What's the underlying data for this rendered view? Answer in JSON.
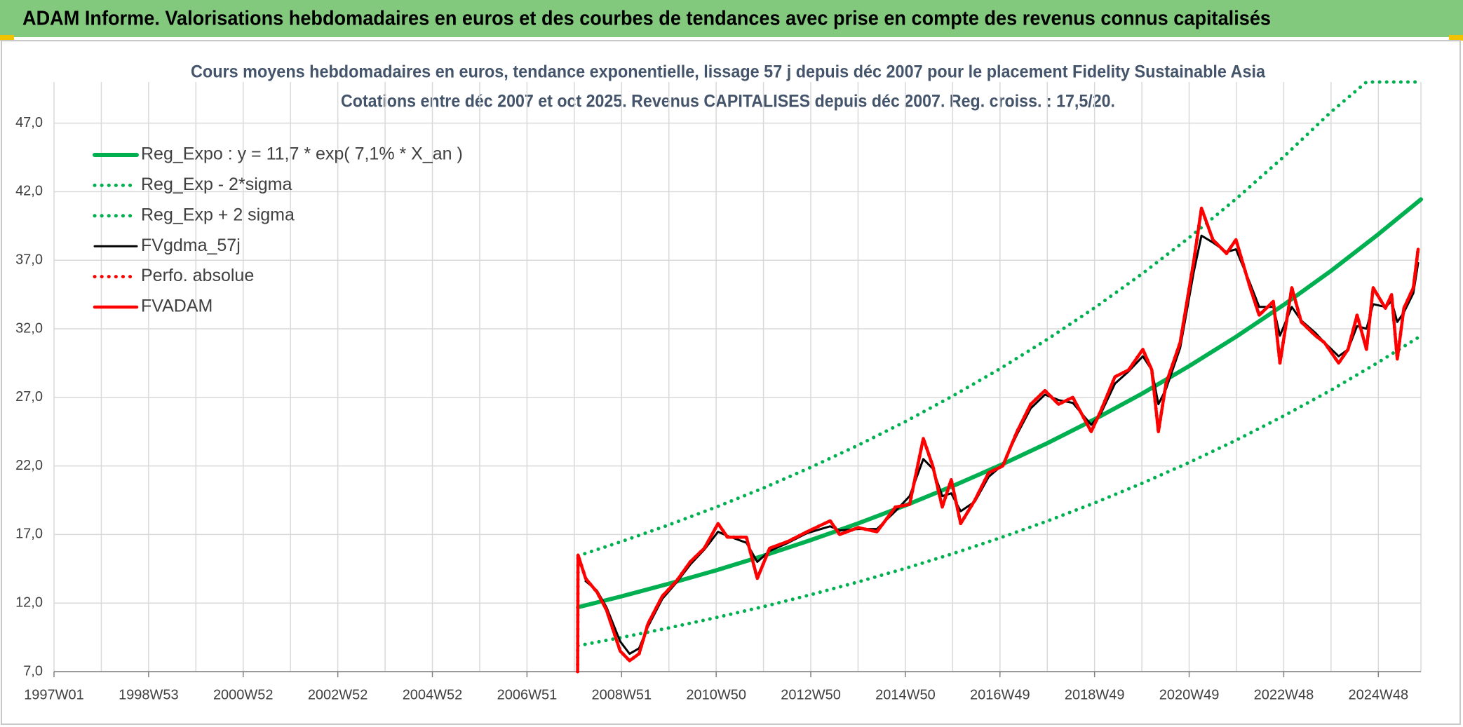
{
  "chart_data": {
    "type": "line",
    "banner": "ADAM Informe. Valorisations hebdomadaires en euros et des courbes de tendances avec prise en compte des revenus connus capitalisés",
    "title": "Cours moyens hebdomadaires en euros, tendance exponentielle, lissage 57 j depuis déc 2007 pour le placement Fidelity Sustainable Asia",
    "subtitle": "Cotations entre déc 2007 et oct 2025. Revenus CAPITALISES depuis déc 2007. Reg. croiss. : 17,5/20.",
    "xlim": [
      1997,
      2025.9
    ],
    "xticks": [
      {
        "value": 1997,
        "label": "1997W01"
      },
      {
        "value": 1999,
        "label": "1998W53"
      },
      {
        "value": 2001,
        "label": "2000W52"
      },
      {
        "value": 2003,
        "label": "2002W52"
      },
      {
        "value": 2005,
        "label": "2004W52"
      },
      {
        "value": 2007,
        "label": "2006W51"
      },
      {
        "value": 2009,
        "label": "2008W51"
      },
      {
        "value": 2011,
        "label": "2010W50"
      },
      {
        "value": 2013,
        "label": "2012W50"
      },
      {
        "value": 2015,
        "label": "2014W50"
      },
      {
        "value": 2017,
        "label": "2016W49"
      },
      {
        "value": 2019,
        "label": "2018W49"
      },
      {
        "value": 2021,
        "label": "2020W49"
      },
      {
        "value": 2023,
        "label": "2022W48"
      },
      {
        "value": 2025,
        "label": "2024W48"
      }
    ],
    "ylim": [
      7,
      50
    ],
    "yticks": [
      {
        "value": 7,
        "label": "7,0"
      },
      {
        "value": 12,
        "label": "12,0"
      },
      {
        "value": 17,
        "label": "17,0"
      },
      {
        "value": 22,
        "label": "22,0"
      },
      {
        "value": 27,
        "label": "27,0"
      },
      {
        "value": 32,
        "label": "32,0"
      },
      {
        "value": 37,
        "label": "37,0"
      },
      {
        "value": 42,
        "label": "42,0"
      },
      {
        "value": 47,
        "label": "47,0"
      }
    ],
    "grid": true,
    "legend": "upper left",
    "series": [
      {
        "name": "Reg_Expo : y = 11,7 * exp( 7,1% *  X_an )",
        "color": "#00b050",
        "style": "solid",
        "x": [
          2008.08,
          2009,
          2010,
          2011,
          2012,
          2013,
          2014,
          2015,
          2016,
          2017,
          2018,
          2019,
          2020,
          2021,
          2022,
          2023,
          2024,
          2025,
          2025.9
        ],
        "values": [
          11.7,
          12.49,
          13.41,
          14.39,
          15.45,
          16.59,
          17.81,
          19.12,
          20.53,
          22.04,
          23.66,
          25.4,
          27.27,
          29.28,
          31.44,
          33.75,
          36.23,
          38.9,
          41.44
        ]
      },
      {
        "name": "Reg_Exp - 2*sigma",
        "color": "#00b050",
        "style": "dotted",
        "x": [
          2008.08,
          2009,
          2010,
          2011,
          2012,
          2013,
          2014,
          2015,
          2016,
          2017,
          2018,
          2019,
          2020,
          2021,
          2022,
          2023,
          2024,
          2025,
          2025.9
        ],
        "values": [
          8.89,
          9.49,
          10.19,
          10.94,
          11.74,
          12.61,
          13.54,
          14.53,
          15.6,
          16.75,
          17.98,
          19.3,
          20.73,
          22.25,
          23.89,
          25.65,
          27.53,
          29.56,
          31.49
        ]
      },
      {
        "name": "Reg_Exp + 2 sigma",
        "color": "#00b050",
        "style": "dotted",
        "x": [
          2008.08,
          2009,
          2010,
          2011,
          2012,
          2013,
          2014,
          2015,
          2016,
          2017,
          2018,
          2019,
          2020,
          2021,
          2022,
          2023,
          2024,
          2024.75,
          2025.9
        ],
        "values": [
          15.44,
          16.49,
          17.7,
          19.0,
          20.39,
          21.9,
          23.51,
          25.24,
          27.1,
          29.09,
          31.23,
          33.53,
          36.0,
          38.65,
          41.5,
          44.55,
          47.82,
          50,
          50
        ]
      },
      {
        "name": "FVgdma_57j",
        "color": "#000000",
        "style": "solid",
        "x": [
          2008.07,
          2008.08,
          2008.24,
          2008.48,
          2008.68,
          2008.97,
          2009.17,
          2009.37,
          2009.56,
          2009.86,
          2010.16,
          2010.45,
          2010.75,
          2011.04,
          2011.24,
          2011.64,
          2011.87,
          2012.13,
          2012.52,
          2012.92,
          2013.41,
          2013.61,
          2014.0,
          2014.4,
          2014.79,
          2015.09,
          2015.38,
          2015.58,
          2015.78,
          2015.97,
          2016.17,
          2016.47,
          2016.76,
          2017.06,
          2017.36,
          2017.65,
          2017.95,
          2018.24,
          2018.54,
          2018.93,
          2019.13,
          2019.43,
          2019.72,
          2020.02,
          2020.21,
          2020.35,
          2020.51,
          2020.81,
          2021.1,
          2021.26,
          2021.5,
          2021.79,
          2021.99,
          2022.29,
          2022.48,
          2022.78,
          2022.92,
          2023.17,
          2023.37,
          2023.67,
          2023.86,
          2024.16,
          2024.36,
          2024.55,
          2024.75,
          2024.89,
          2025.15,
          2025.28,
          2025.4,
          2025.54,
          2025.74,
          2025.84
        ],
        "values": [
          null,
          null,
          13.6,
          12.9,
          11.7,
          9.2,
          8.3,
          8.7,
          10.3,
          12.3,
          13.5,
          14.8,
          15.9,
          17.2,
          16.9,
          16.4,
          15.0,
          15.8,
          16.4,
          17.1,
          17.6,
          17.3,
          17.4,
          17.4,
          18.7,
          19.8,
          22.5,
          21.8,
          19.8,
          20.0,
          18.7,
          19.4,
          21.2,
          22.1,
          24.3,
          26.2,
          27.2,
          26.8,
          26.6,
          25.0,
          25.8,
          28.0,
          28.9,
          30.0,
          29.0,
          26.5,
          27.6,
          30.6,
          36.2,
          38.8,
          38.3,
          37.6,
          37.8,
          35.3,
          33.6,
          33.6,
          31.5,
          33.6,
          32.6,
          31.7,
          31.0,
          30.0,
          30.5,
          32.2,
          32.0,
          33.8,
          33.6,
          34.0,
          32.5,
          33.2,
          34.6,
          36.8
        ]
      },
      {
        "name": "Perfo. absolue",
        "color": "#ff0000",
        "style": "dotted",
        "x": [
          2008.07,
          2008.08,
          2008.24,
          2008.48,
          2008.68,
          2008.97,
          2009.17,
          2009.37,
          2009.56,
          2009.86,
          2010.16,
          2010.45,
          2010.75,
          2011.04,
          2011.24,
          2011.64,
          2011.87,
          2012.13,
          2012.52,
          2012.92,
          2013.41,
          2013.61,
          2014.0,
          2014.4,
          2014.79,
          2015.09,
          2015.38,
          2015.58,
          2015.78,
          2015.97,
          2016.17,
          2016.47,
          2016.76,
          2017.06,
          2017.36,
          2017.65,
          2017.95,
          2018.24,
          2018.54,
          2018.93,
          2019.13,
          2019.43,
          2019.72,
          2020.02,
          2020.21,
          2020.35,
          2020.51,
          2020.81,
          2021.1,
          2021.26,
          2021.5,
          2021.79,
          2021.99,
          2022.29,
          2022.48,
          2022.78,
          2022.92,
          2023.17,
          2023.37,
          2023.67,
          2023.86,
          2024.16,
          2024.36,
          2024.55,
          2024.75,
          2024.89,
          2025.15,
          2025.28,
          2025.4,
          2025.54,
          2025.74,
          2025.84
        ],
        "values": [
          7.0,
          15.5,
          13.8,
          12.8,
          11.5,
          8.5,
          7.8,
          8.3,
          10.5,
          12.5,
          13.6,
          15.0,
          16.0,
          17.8,
          16.8,
          16.8,
          13.8,
          16.0,
          16.5,
          17.2,
          18.0,
          17.0,
          17.5,
          17.2,
          19.0,
          19.2,
          24.0,
          22.0,
          19.0,
          21.0,
          17.8,
          19.5,
          21.5,
          22.0,
          24.5,
          26.5,
          27.5,
          26.5,
          27.0,
          24.5,
          26.0,
          28.5,
          29.0,
          30.5,
          29.0,
          24.5,
          28.0,
          31.0,
          37.0,
          40.8,
          38.5,
          37.5,
          38.5,
          35.0,
          33.0,
          34.0,
          29.5,
          35.0,
          32.5,
          31.5,
          31.0,
          29.5,
          30.5,
          33.0,
          30.5,
          35.0,
          33.5,
          34.5,
          29.8,
          33.5,
          35.0,
          37.8
        ]
      },
      {
        "name": "FVADAM",
        "color": "#ff0000",
        "style": "solid",
        "x": [
          2008.07,
          2008.08,
          2008.24,
          2008.48,
          2008.68,
          2008.97,
          2009.17,
          2009.37,
          2009.56,
          2009.86,
          2010.16,
          2010.45,
          2010.75,
          2011.04,
          2011.24,
          2011.64,
          2011.87,
          2012.13,
          2012.52,
          2012.92,
          2013.41,
          2013.61,
          2014.0,
          2014.4,
          2014.79,
          2015.09,
          2015.38,
          2015.58,
          2015.78,
          2015.97,
          2016.17,
          2016.47,
          2016.76,
          2017.06,
          2017.36,
          2017.65,
          2017.95,
          2018.24,
          2018.54,
          2018.93,
          2019.13,
          2019.43,
          2019.72,
          2020.02,
          2020.21,
          2020.35,
          2020.51,
          2020.81,
          2021.1,
          2021.26,
          2021.5,
          2021.79,
          2021.99,
          2022.29,
          2022.48,
          2022.78,
          2022.92,
          2023.17,
          2023.37,
          2023.67,
          2023.86,
          2024.16,
          2024.36,
          2024.55,
          2024.75,
          2024.89,
          2025.15,
          2025.28,
          2025.4,
          2025.54,
          2025.74,
          2025.84
        ],
        "values": [
          7.0,
          15.5,
          13.8,
          12.8,
          11.5,
          8.5,
          7.8,
          8.3,
          10.5,
          12.5,
          13.6,
          15.0,
          16.0,
          17.8,
          16.8,
          16.8,
          13.8,
          16.0,
          16.5,
          17.2,
          18.0,
          17.0,
          17.5,
          17.2,
          19.0,
          19.2,
          24.0,
          22.0,
          19.0,
          21.0,
          17.8,
          19.5,
          21.5,
          22.0,
          24.5,
          26.5,
          27.5,
          26.5,
          27.0,
          24.5,
          26.0,
          28.5,
          29.0,
          30.5,
          29.0,
          24.5,
          28.0,
          31.0,
          37.0,
          40.8,
          38.5,
          37.5,
          38.5,
          35.0,
          33.0,
          34.0,
          29.5,
          35.0,
          32.5,
          31.5,
          31.0,
          29.5,
          30.5,
          33.0,
          30.5,
          35.0,
          33.5,
          34.5,
          29.8,
          33.5,
          35.0,
          37.8
        ]
      }
    ]
  }
}
